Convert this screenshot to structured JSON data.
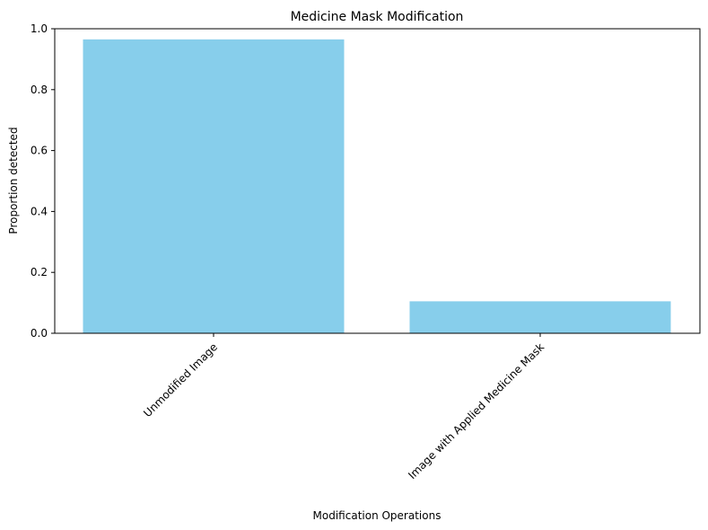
{
  "chart_data": {
    "type": "bar",
    "title": "Medicine Mask Modification",
    "xlabel": "Modification Operations",
    "ylabel": "Proportion detected",
    "categories": [
      "Unmodified Image",
      "Image with Applied Medicine Mask"
    ],
    "values": [
      0.965,
      0.105
    ],
    "ylim": [
      0,
      1.0
    ],
    "yticks": [
      "0.0",
      "0.2",
      "0.4",
      "0.6",
      "0.8",
      "1.0"
    ],
    "bar_color": "#87ceeb",
    "grid": false,
    "legend": "none"
  }
}
